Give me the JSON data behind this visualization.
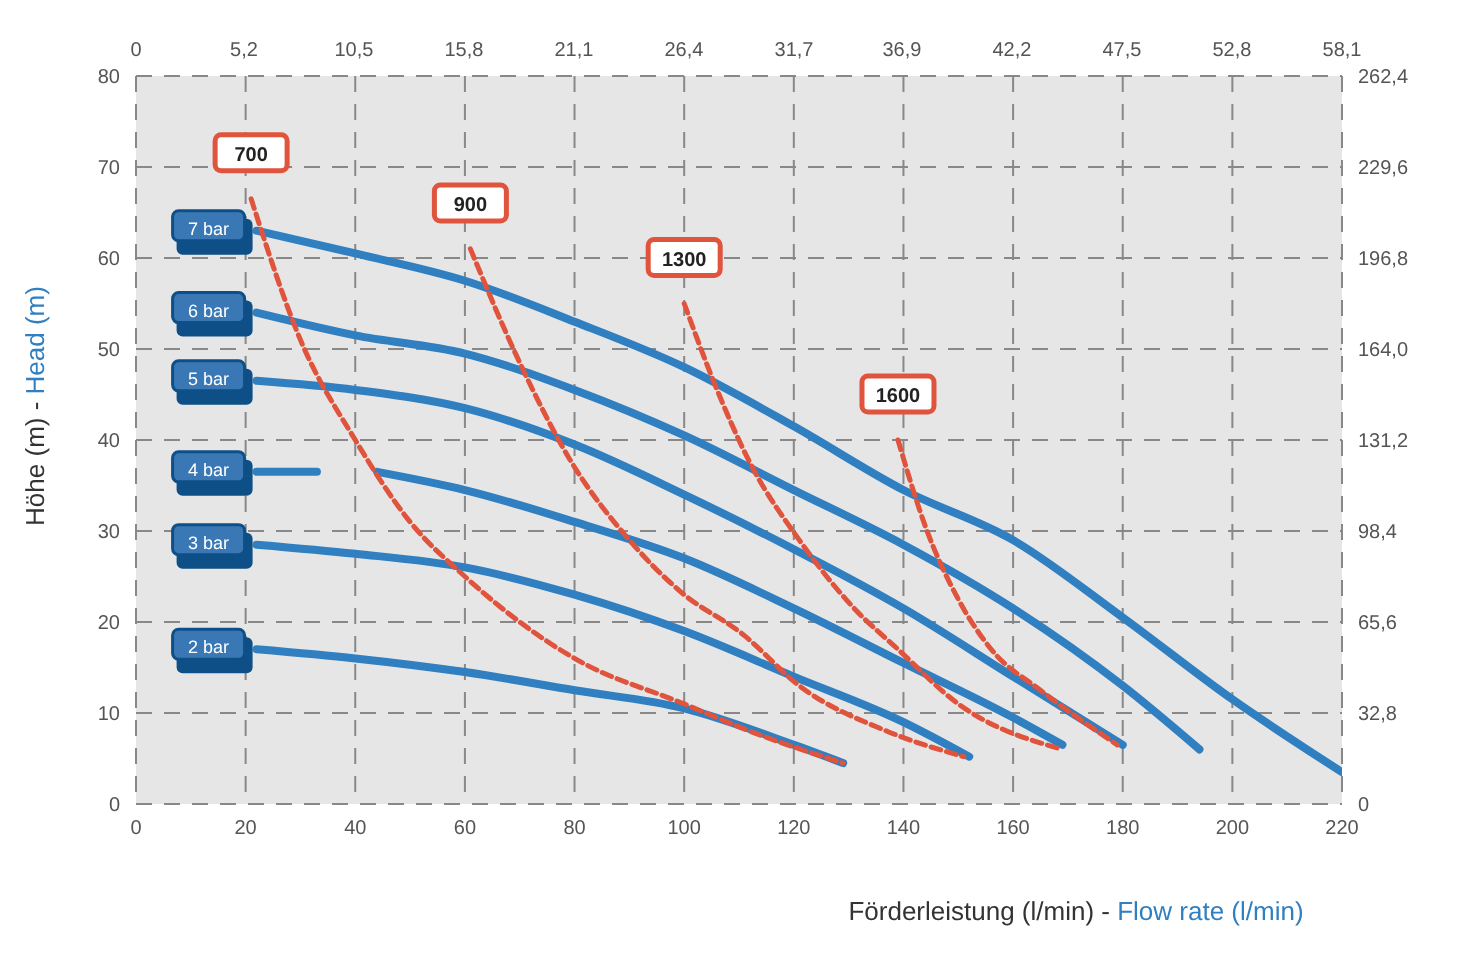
{
  "chart_data": {
    "type": "line",
    "xlabel": "Förderleistung (l/min) - Flow rate (l/min)",
    "ylabel": "Höhe (m) - Head (m)",
    "xlim": [
      0,
      220
    ],
    "xticks": [
      0,
      20,
      40,
      60,
      80,
      100,
      120,
      140,
      160,
      180,
      200,
      220
    ],
    "ylim": [
      0,
      80
    ],
    "yticks": [
      0,
      10,
      20,
      30,
      40,
      50,
      60,
      70,
      80
    ],
    "x2lim": [
      0,
      58.1
    ],
    "x2ticks": [
      0,
      {
        "value": 5.2,
        "label": "5,2"
      },
      {
        "value": 10.5,
        "label": "10,5"
      },
      {
        "value": 15.8,
        "label": "15,8"
      },
      {
        "value": 21.1,
        "label": "21,1"
      },
      {
        "value": 26.4,
        "label": "26,4"
      },
      {
        "value": 31.7,
        "label": "31,7"
      },
      {
        "value": 36.9,
        "label": "36,9"
      },
      {
        "value": 42.2,
        "label": "42,2"
      },
      {
        "value": 47.5,
        "label": "47,5"
      },
      {
        "value": 52.8,
        "label": "52,8"
      },
      {
        "value": 58.1,
        "label": "58,1"
      }
    ],
    "y2lim": [
      0,
      262.4
    ],
    "y2ticks": [
      0,
      {
        "value": 32.8,
        "label": "32,8"
      },
      {
        "value": 65.6,
        "label": "65,6"
      },
      {
        "value": 98.4,
        "label": "98,4"
      },
      {
        "value": 131.2,
        "label": "131,2"
      },
      {
        "value": 164,
        "label": "164,0"
      },
      {
        "value": 196.8,
        "label": "196,8"
      },
      {
        "value": 229.6,
        "label": "229,6"
      },
      {
        "value": 262.4,
        "label": "262,4"
      }
    ],
    "grid": true,
    "marker": "none",
    "series": [
      {
        "name": "7 bar",
        "color": "#2f7fc1",
        "line_style": "solid",
        "x": [
          22,
          40,
          60,
          80,
          100,
          120,
          140,
          160,
          180,
          200,
          220
        ],
        "values": [
          63,
          60.5,
          57.5,
          53,
          48,
          41.5,
          34.5,
          29,
          20.5,
          11.5,
          3.5
        ]
      },
      {
        "name": "6 bar",
        "color": "#2f7fc1",
        "line_style": "solid",
        "x": [
          22,
          40,
          60,
          80,
          100,
          120,
          140,
          160,
          180,
          194
        ],
        "values": [
          54,
          51.5,
          49.5,
          45.5,
          40.5,
          34.5,
          28.5,
          21.5,
          13,
          6
        ]
      },
      {
        "name": "5 bar",
        "color": "#2f7fc1",
        "line_style": "solid",
        "x": [
          22,
          40,
          60,
          80,
          100,
          120,
          140,
          160,
          180
        ],
        "values": [
          46.5,
          45.5,
          43.5,
          39.5,
          34,
          28,
          21.5,
          14,
          6.5
        ]
      },
      {
        "name": "4 bar",
        "color": "#2f7fc1",
        "line_style": "solid",
        "x": [
          22,
          33,
          38,
          44,
          60,
          80,
          100,
          120,
          140,
          160,
          169
        ],
        "values": [
          36.5,
          36.5,
          null,
          36.5,
          34.5,
          31,
          27,
          21.5,
          15.5,
          9.5,
          6.5
        ]
      },
      {
        "name": "3 bar",
        "color": "#2f7fc1",
        "line_style": "solid",
        "x": [
          22,
          40,
          60,
          80,
          100,
          120,
          140,
          152
        ],
        "values": [
          28.5,
          27.5,
          26,
          23,
          19,
          14,
          9,
          5.2
        ]
      },
      {
        "name": "2 bar",
        "color": "#2f7fc1",
        "line_style": "solid",
        "x": [
          22,
          40,
          60,
          80,
          100,
          120,
          129
        ],
        "values": [
          17,
          16,
          14.5,
          12.5,
          10.5,
          6.5,
          4.5
        ]
      },
      {
        "name": "700",
        "color": "#e0533c",
        "line_style": "dashed",
        "x": [
          21,
          30,
          40,
          50,
          60,
          80,
          100,
          112,
          129
        ],
        "values": [
          66.5,
          51,
          40,
          31,
          25,
          16,
          11,
          8,
          4.5
        ]
      },
      {
        "name": "900",
        "color": "#e0533c",
        "line_style": "dashed",
        "x": [
          61,
          70,
          79,
          90,
          99,
          111,
          121,
          137,
          151
        ],
        "values": [
          61,
          48.5,
          38,
          29,
          23.5,
          18.5,
          13,
          8,
          5.2
        ]
      },
      {
        "name": "1300",
        "color": "#e0533c",
        "line_style": "dashed",
        "x": [
          100,
          105,
          112,
          121,
          131,
          139,
          150,
          169
        ],
        "values": [
          55,
          47,
          37.5,
          29,
          21.5,
          17,
          11,
          6
        ]
      },
      {
        "name": "1600",
        "color": "#e0533c",
        "line_style": "dashed",
        "x": [
          139,
          144,
          150,
          156,
          165,
          179
        ],
        "values": [
          40,
          30.5,
          22.5,
          17,
          12.5,
          6.5
        ]
      }
    ]
  }
}
